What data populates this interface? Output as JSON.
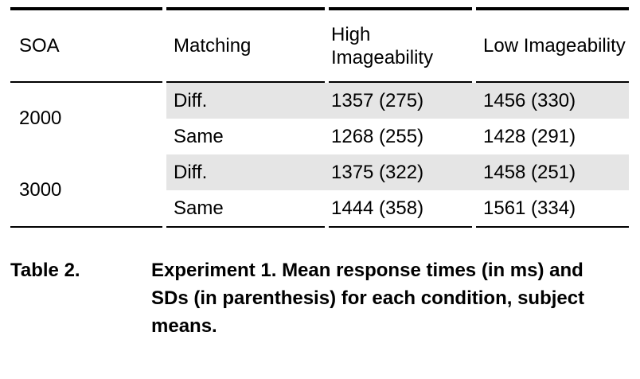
{
  "table": {
    "headers": {
      "soa": "SOA",
      "matching": "Matching",
      "high_imageability": "High Imageability",
      "low_imageability": "Low Imageability"
    },
    "soa_groups": [
      {
        "label": "2000"
      },
      {
        "label": "3000"
      }
    ],
    "rows": [
      {
        "matching": "Diff.",
        "high_imageability": "1357 (275)",
        "low_imageability": "1456 (330)",
        "shaded": true
      },
      {
        "matching": "Same",
        "high_imageability": "1268 (255)",
        "low_imageability": "1428 (291)",
        "shaded": false
      },
      {
        "matching": "Diff.",
        "high_imageability": "1375 (322)",
        "low_imageability": "1458 (251)",
        "shaded": true
      },
      {
        "matching": "Same",
        "high_imageability": "1444 (358)",
        "low_imageability": "1561 (334)",
        "shaded": false
      }
    ]
  },
  "caption": {
    "label": "Table 2.",
    "text": "Experiment 1. Mean response times (in ms) and SDs (in parenthesis) for each condition, subject means."
  },
  "colors": {
    "row_shading": "#e5e5e5",
    "rule": "#000000",
    "text": "#000000",
    "background": "#ffffff"
  }
}
